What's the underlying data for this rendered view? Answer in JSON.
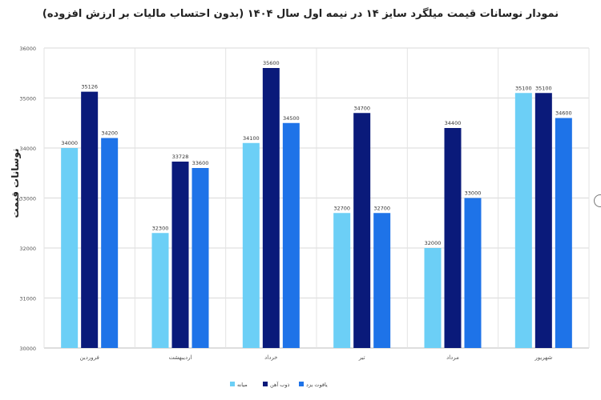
{
  "chart_data": {
    "type": "bar",
    "title": "نمودار نوسانات قیمت میلگرد سایز ۱۴ در نیمه اول سال ۱۴۰۴ (بدون احتساب مالیات بر ارزش افزوده)",
    "xlabel": "",
    "ylabel": "نوسانات قیمت",
    "ylim": [
      30000,
      36000
    ],
    "yticks": [
      30000,
      31000,
      32000,
      33000,
      34000,
      35000,
      36000
    ],
    "grid": true,
    "legend_position": "bottom",
    "categories": [
      "فروردین",
      "اردیبهشت",
      "خرداد",
      "تیر",
      "مرداد",
      "شهریور"
    ],
    "series": [
      {
        "name": "میانه",
        "color": "#6CCFF6",
        "values": [
          34000,
          32300,
          34100,
          32700,
          32000,
          35100
        ]
      },
      {
        "name": "ذوب آهن",
        "color": "#0A1A7A",
        "values": [
          35126,
          33728,
          35600,
          34700,
          34400,
          35100
        ]
      },
      {
        "name": "یاقوت یزد",
        "color": "#1E73E8",
        "values": [
          34200,
          33600,
          34500,
          32700,
          33000,
          34600
        ]
      }
    ]
  }
}
